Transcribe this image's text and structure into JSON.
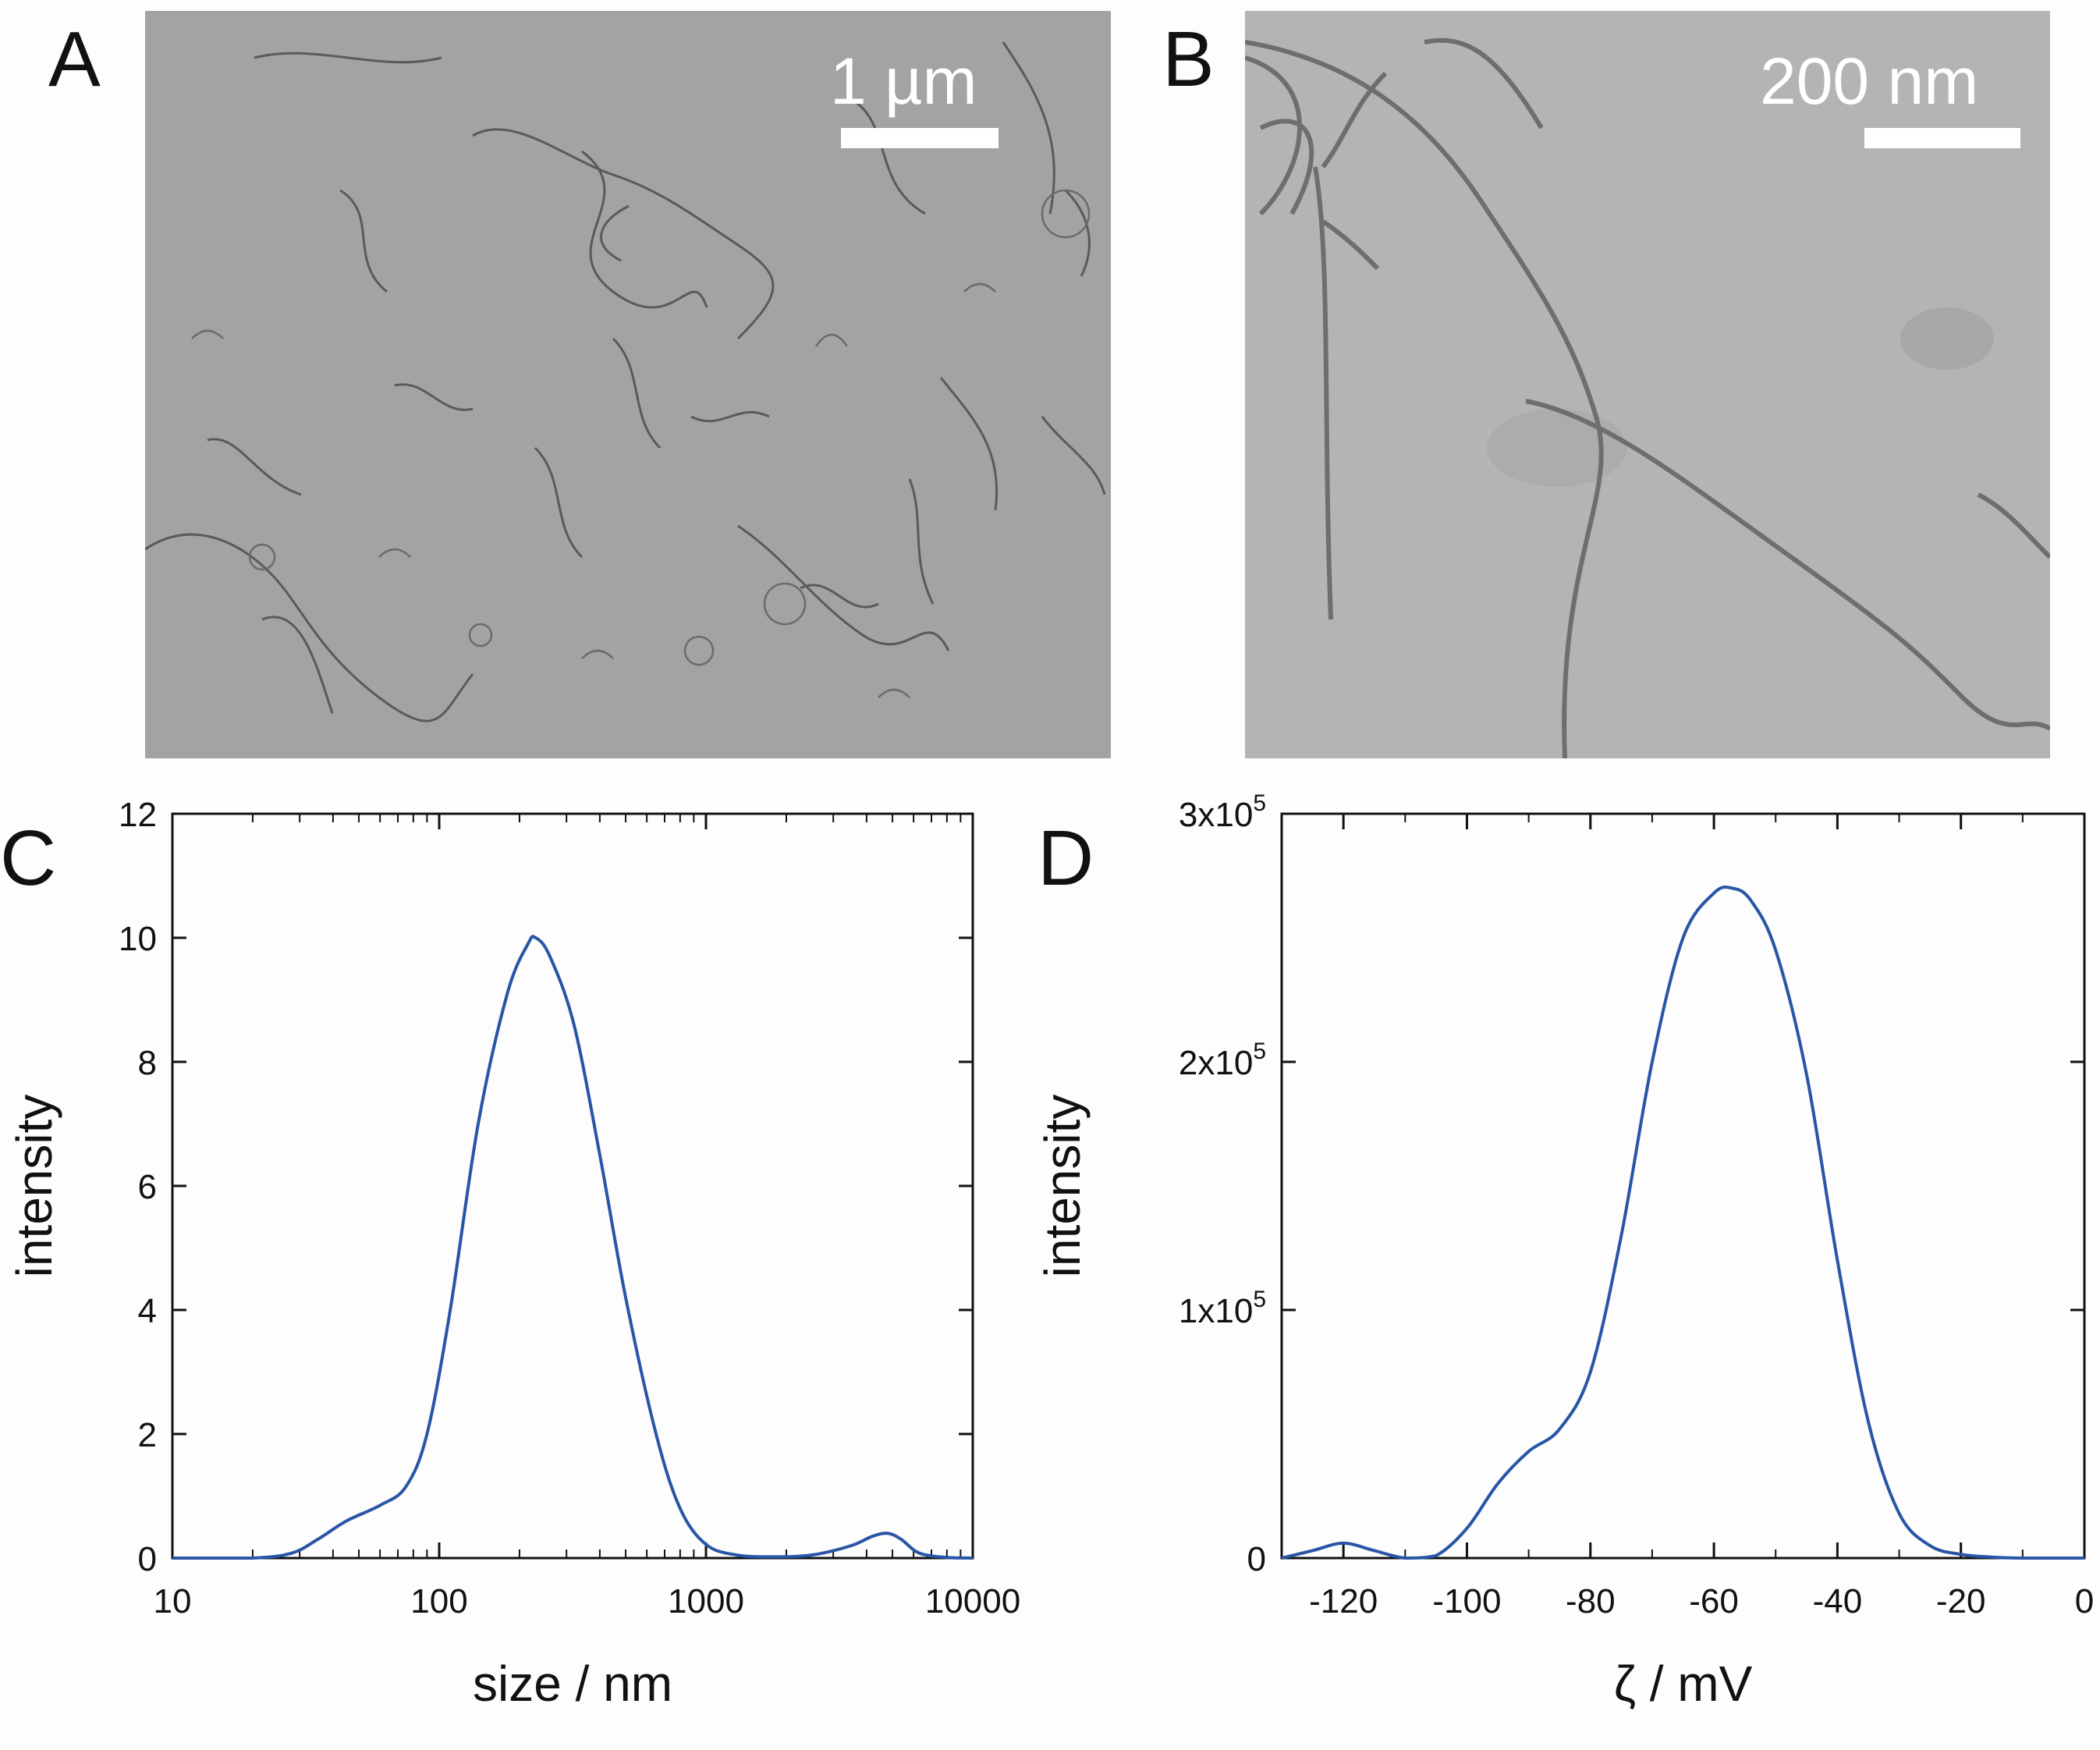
{
  "panels": {
    "a": {
      "letter": "A",
      "scale_label": "1 µm",
      "description_kind": "TEM image of dispersed fibrils"
    },
    "b": {
      "letter": "B",
      "scale_label": "200 nm",
      "description_kind": "TEM image of fibrils at higher magnification"
    },
    "c": {
      "letter": "C"
    },
    "d": {
      "letter": "D"
    }
  },
  "colors": {
    "curve": "#2855a6",
    "tem_bg_a": "#a3a3a3",
    "tem_bg_b": "#b4b4b4"
  },
  "chart_data": [
    {
      "id": "C",
      "type": "line",
      "xscale": "log",
      "xlabel": "size / nm",
      "ylabel": "intensity",
      "xlim": [
        10,
        10000
      ],
      "ylim": [
        0,
        12
      ],
      "xticks": [
        10,
        100,
        1000,
        10000
      ],
      "xtick_labels": [
        "10",
        "100",
        "1000",
        "10000"
      ],
      "yticks": [
        0,
        2,
        4,
        6,
        8,
        10,
        12
      ],
      "ytick_labels": [
        "0",
        "2",
        "4",
        "6",
        "8",
        "10",
        "12"
      ],
      "series": [
        {
          "name": "size distribution",
          "x": [
            10,
            20,
            28,
            35,
            45,
            60,
            75,
            90,
            110,
            140,
            180,
            215,
            230,
            260,
            320,
            400,
            500,
            650,
            800,
            1000,
            1300,
            1800,
            2500,
            3500,
            4200,
            4800,
            5400,
            6300,
            8000,
            10000
          ],
          "y": [
            0,
            0,
            0.08,
            0.3,
            0.6,
            0.85,
            1.15,
            2.0,
            4.0,
            7.0,
            9.1,
            9.9,
            10.0,
            9.7,
            8.6,
            6.5,
            4.2,
            2.0,
            0.8,
            0.22,
            0.05,
            0.02,
            0.05,
            0.2,
            0.35,
            0.4,
            0.3,
            0.08,
            0.01,
            0
          ]
        }
      ]
    },
    {
      "id": "D",
      "type": "line",
      "xscale": "linear",
      "xlabel": "ζ / mV",
      "ylabel": "intensity",
      "xlim": [
        -130,
        0
      ],
      "ylim": [
        0,
        300000
      ],
      "xticks": [
        -120,
        -100,
        -80,
        -60,
        -40,
        -20,
        0
      ],
      "xtick_labels": [
        "-120",
        "-100",
        "-80",
        "-60",
        "-40",
        "-20",
        "0"
      ],
      "yticks": [
        0,
        100000,
        200000,
        300000
      ],
      "ytick_labels": [
        {
          "main": "0",
          "sup": ""
        },
        {
          "main": "1x10",
          "sup": "5"
        },
        {
          "main": "2x10",
          "sup": "5"
        },
        {
          "main": "3x10",
          "sup": "5"
        }
      ],
      "series": [
        {
          "name": "zeta potential distribution",
          "x": [
            -130,
            -125,
            -120,
            -115,
            -110,
            -105,
            -100,
            -95,
            -90,
            -85,
            -80,
            -75,
            -70,
            -65,
            -60,
            -57,
            -54,
            -50,
            -45,
            -40,
            -35,
            -30,
            -25,
            -20,
            -15,
            -10,
            0
          ],
          "y": [
            0,
            3000,
            6000,
            3000,
            0,
            1000,
            12000,
            30000,
            43000,
            52000,
            75000,
            130000,
            200000,
            250000,
            268000,
            270000,
            265000,
            245000,
            195000,
            120000,
            55000,
            18000,
            5000,
            1500,
            400,
            0,
            0
          ]
        }
      ]
    }
  ]
}
